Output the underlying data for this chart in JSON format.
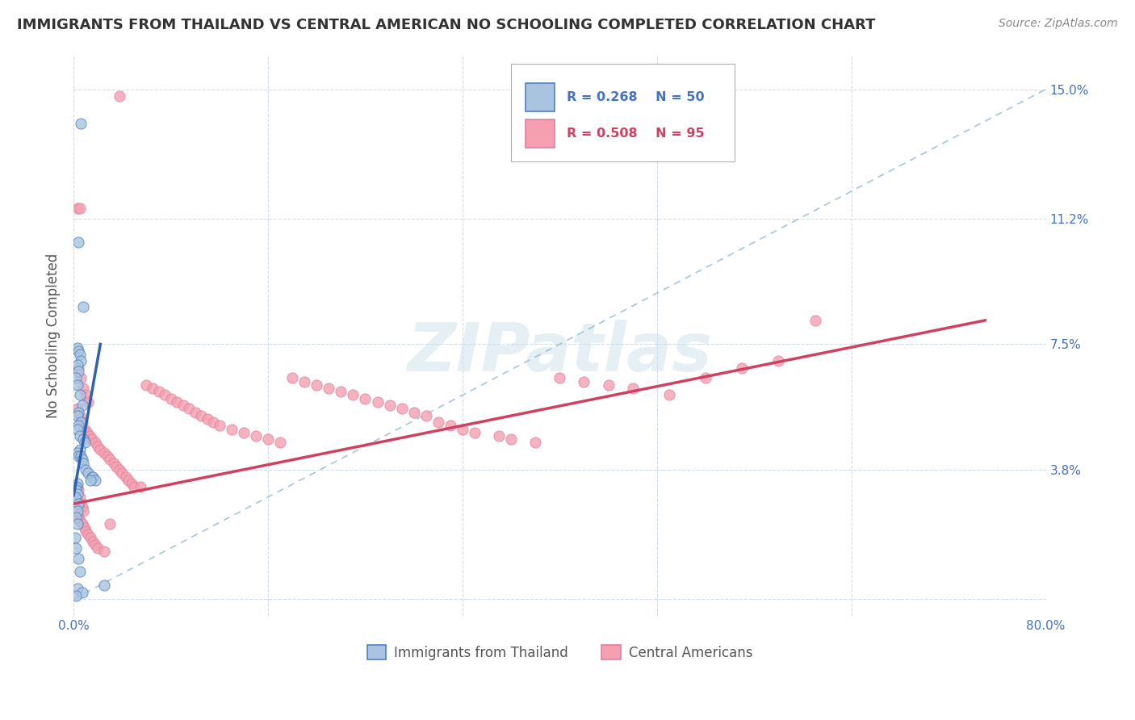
{
  "title": "IMMIGRANTS FROM THAILAND VS CENTRAL AMERICAN NO SCHOOLING COMPLETED CORRELATION CHART",
  "source": "Source: ZipAtlas.com",
  "ylabel": "No Schooling Completed",
  "legend_r1": "R = 0.268",
  "legend_n1": "N = 50",
  "legend_r2": "R = 0.508",
  "legend_n2": "N = 95",
  "color_thailand": "#a8c4e0",
  "color_central": "#f4a0b0",
  "color_trendline_thailand": "#3060b0",
  "color_trendline_central": "#d04060",
  "color_diagonal": "#90b8d0",
  "watermark": "ZIPatlas",
  "xlim": [
    0.0,
    0.8
  ],
  "ylim": [
    -0.005,
    0.16
  ],
  "xtick_positions": [
    0.0,
    0.16,
    0.32,
    0.48,
    0.64,
    0.8
  ],
  "xtick_labels": [
    "0.0%",
    "",
    "",
    "",
    "",
    "80.0%"
  ],
  "ytick_positions": [
    0.0,
    0.038,
    0.075,
    0.112,
    0.15
  ],
  "ytick_labels": [
    "",
    "3.8%",
    "7.5%",
    "11.2%",
    "15.0%"
  ],
  "thai_trendline": [
    0.0,
    0.0305,
    0.022,
    0.075
  ],
  "cent_trendline": [
    0.0,
    0.028,
    0.75,
    0.082
  ],
  "thai_x": [
    0.006,
    0.004,
    0.008,
    0.003,
    0.004,
    0.005,
    0.006,
    0.003,
    0.004,
    0.002,
    0.003,
    0.005,
    0.007,
    0.004,
    0.003,
    0.006,
    0.004,
    0.003,
    0.005,
    0.008,
    0.009,
    0.005,
    0.003,
    0.004,
    0.006,
    0.007,
    0.008,
    0.01,
    0.012,
    0.015,
    0.016,
    0.018,
    0.014,
    0.003,
    0.002,
    0.002,
    0.003,
    0.001,
    0.004,
    0.003,
    0.002,
    0.003,
    0.001,
    0.002,
    0.004,
    0.005,
    0.025,
    0.003,
    0.007,
    0.002
  ],
  "thai_y": [
    0.14,
    0.105,
    0.086,
    0.074,
    0.073,
    0.072,
    0.07,
    0.069,
    0.067,
    0.065,
    0.063,
    0.06,
    0.057,
    0.055,
    0.054,
    0.052,
    0.051,
    0.05,
    0.048,
    0.047,
    0.046,
    0.044,
    0.043,
    0.042,
    0.042,
    0.041,
    0.04,
    0.038,
    0.037,
    0.036,
    0.036,
    0.035,
    0.035,
    0.034,
    0.033,
    0.032,
    0.031,
    0.03,
    0.028,
    0.026,
    0.024,
    0.022,
    0.018,
    0.015,
    0.012,
    0.008,
    0.004,
    0.003,
    0.002,
    0.001
  ],
  "cent_x": [
    0.038,
    0.003,
    0.005,
    0.004,
    0.006,
    0.008,
    0.01,
    0.012,
    0.003,
    0.005,
    0.007,
    0.009,
    0.011,
    0.013,
    0.015,
    0.018,
    0.02,
    0.022,
    0.025,
    0.028,
    0.03,
    0.033,
    0.035,
    0.038,
    0.04,
    0.043,
    0.045,
    0.048,
    0.05,
    0.055,
    0.06,
    0.065,
    0.07,
    0.075,
    0.08,
    0.085,
    0.09,
    0.095,
    0.1,
    0.105,
    0.11,
    0.115,
    0.12,
    0.13,
    0.14,
    0.15,
    0.16,
    0.17,
    0.18,
    0.19,
    0.2,
    0.21,
    0.22,
    0.23,
    0.24,
    0.25,
    0.26,
    0.27,
    0.28,
    0.29,
    0.3,
    0.31,
    0.32,
    0.33,
    0.35,
    0.36,
    0.38,
    0.4,
    0.42,
    0.44,
    0.46,
    0.49,
    0.52,
    0.55,
    0.58,
    0.61,
    0.005,
    0.006,
    0.007,
    0.008,
    0.003,
    0.004,
    0.003,
    0.004,
    0.005,
    0.007,
    0.009,
    0.01,
    0.012,
    0.014,
    0.016,
    0.018,
    0.02,
    0.025,
    0.03
  ],
  "cent_y": [
    0.148,
    0.115,
    0.115,
    0.068,
    0.065,
    0.062,
    0.06,
    0.058,
    0.056,
    0.054,
    0.052,
    0.05,
    0.049,
    0.048,
    0.047,
    0.046,
    0.045,
    0.044,
    0.043,
    0.042,
    0.041,
    0.04,
    0.039,
    0.038,
    0.037,
    0.036,
    0.035,
    0.034,
    0.033,
    0.033,
    0.063,
    0.062,
    0.061,
    0.06,
    0.059,
    0.058,
    0.057,
    0.056,
    0.055,
    0.054,
    0.053,
    0.052,
    0.051,
    0.05,
    0.049,
    0.048,
    0.047,
    0.046,
    0.065,
    0.064,
    0.063,
    0.062,
    0.061,
    0.06,
    0.059,
    0.058,
    0.057,
    0.056,
    0.055,
    0.054,
    0.052,
    0.051,
    0.05,
    0.049,
    0.048,
    0.047,
    0.046,
    0.065,
    0.064,
    0.063,
    0.062,
    0.06,
    0.065,
    0.068,
    0.07,
    0.082,
    0.03,
    0.028,
    0.027,
    0.026,
    0.033,
    0.032,
    0.025,
    0.024,
    0.023,
    0.022,
    0.021,
    0.02,
    0.019,
    0.018,
    0.017,
    0.016,
    0.015,
    0.014,
    0.022
  ]
}
